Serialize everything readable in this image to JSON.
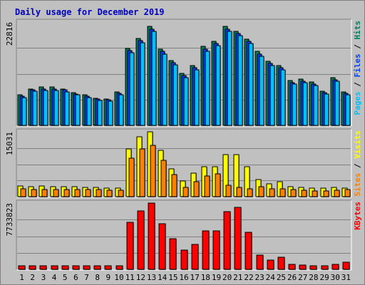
{
  "chart_data": {
    "type": "bar",
    "title": "Daily usage for December 2019",
    "colors": {
      "background": "#c0c0c0",
      "grid": "#808080",
      "hits": "#00805c",
      "files": "#0040ff",
      "pages": "#00c0ff",
      "visits": "#ffff00",
      "sites": "#ff8000",
      "kbytes": "#ff0000",
      "weekend_day_label": "#00805c",
      "weekday_day_label": "#000000",
      "title": "#0000c0"
    },
    "days": [
      {
        "label": "1",
        "weekend": true
      },
      {
        "label": "2",
        "weekend": false
      },
      {
        "label": "3",
        "weekend": false
      },
      {
        "label": "4",
        "weekend": false
      },
      {
        "label": "5",
        "weekend": false
      },
      {
        "label": "6",
        "weekend": false
      },
      {
        "label": "7",
        "weekend": true
      },
      {
        "label": "8",
        "weekend": true
      },
      {
        "label": "9",
        "weekend": false
      },
      {
        "label": "10",
        "weekend": false
      },
      {
        "label": "11",
        "weekend": false
      },
      {
        "label": "12",
        "weekend": false
      },
      {
        "label": "13",
        "weekend": false
      },
      {
        "label": "14",
        "weekend": true
      },
      {
        "label": "15",
        "weekend": true
      },
      {
        "label": "16",
        "weekend": false
      },
      {
        "label": "17",
        "weekend": false
      },
      {
        "label": "18",
        "weekend": false
      },
      {
        "label": "19",
        "weekend": false
      },
      {
        "label": "20",
        "weekend": false
      },
      {
        "label": "21",
        "weekend": true
      },
      {
        "label": "22",
        "weekend": true
      },
      {
        "label": "23",
        "weekend": false
      },
      {
        "label": "24",
        "weekend": false
      },
      {
        "label": "25",
        "weekend": false
      },
      {
        "label": "26",
        "weekend": false
      },
      {
        "label": "27",
        "weekend": false
      },
      {
        "label": "28",
        "weekend": true
      },
      {
        "label": "29",
        "weekend": true
      },
      {
        "label": "30",
        "weekend": false
      },
      {
        "label": "31",
        "weekend": false
      }
    ],
    "panels": [
      {
        "axis_max_label": "22816",
        "ylim": [
          0,
          22816
        ],
        "legend": [
          {
            "text": "Pages",
            "color": "#00c0ff"
          },
          {
            "text": " / ",
            "color": "#000000"
          },
          {
            "text": "Files",
            "color": "#0040ff"
          },
          {
            "text": " / ",
            "color": "#000000"
          },
          {
            "text": "Hits",
            "color": "#00805c"
          }
        ],
        "series": [
          {
            "name": "Hits",
            "color": "#00805c",
            "values": [
              6800,
              8100,
              8500,
              8500,
              8100,
              7300,
              6800,
              6000,
              5800,
              7400,
              17000,
              19200,
              21800,
              16800,
              14300,
              11500,
              13200,
              17400,
              18500,
              21800,
              20800,
              19100,
              16300,
              14100,
              13200,
              9900,
              10200,
              9600,
              7600,
              10500,
              7400
            ]
          },
          {
            "name": "Files",
            "color": "#0040ff",
            "values": [
              6400,
              7800,
              8000,
              8000,
              7800,
              7000,
              6500,
              5800,
              5600,
              7100,
              16500,
              18800,
              21300,
              16300,
              13900,
              11000,
              12700,
              16900,
              18100,
              21300,
              20300,
              18600,
              15800,
              13700,
              12800,
              9500,
              9800,
              9200,
              7300,
              10100,
              7100
            ]
          },
          {
            "name": "Pages",
            "color": "#00c0ff",
            "values": [
              6100,
              7500,
              7700,
              7700,
              7400,
              6700,
              6200,
              5500,
              5300,
              6700,
              16000,
              18300,
              20800,
              15800,
              13400,
              10500,
              12200,
              16400,
              17600,
              20800,
              19800,
              18100,
              15300,
              13200,
              12300,
              9100,
              9400,
              8800,
              6900,
              9700,
              6800
            ]
          }
        ]
      },
      {
        "axis_max_label": "15031",
        "ylim": [
          0,
          15031
        ],
        "legend": [
          {
            "text": "Sites",
            "color": "#ff8000"
          },
          {
            "text": " / ",
            "color": "#000000"
          },
          {
            "text": "Visits",
            "color": "#ffff00"
          }
        ],
        "series": [
          {
            "name": "Visits",
            "color": "#ffff00",
            "values": [
              2500,
              2300,
              2400,
              2300,
              2300,
              2300,
              2200,
              2200,
              1900,
              1900,
              11100,
              13800,
              15000,
              10700,
              6500,
              3600,
              5500,
              6900,
              7000,
              9800,
              9800,
              6900,
              3900,
              2900,
              3500,
              2300,
              2100,
              2000,
              2000,
              2100,
              2000
            ]
          },
          {
            "name": "Sites",
            "color": "#ff8000",
            "values": [
              1800,
              1700,
              1700,
              1700,
              1700,
              1700,
              1600,
              1600,
              1500,
              1500,
              8900,
              11000,
              11900,
              8500,
              5100,
              2200,
              3500,
              4800,
              5300,
              2700,
              2200,
              1800,
              2300,
              1800,
              1800,
              1700,
              1500,
              1400,
              1400,
              1500,
              1600
            ]
          }
        ]
      },
      {
        "axis_max_label": "7733823",
        "ylim": [
          0,
          7733823
        ],
        "legend": [
          {
            "text": "KBytes",
            "color": "#ff0000"
          }
        ],
        "series": [
          {
            "name": "KBytes",
            "color": "#ff0000",
            "values": [
              450000,
              450000,
              450000,
              450000,
              450000,
              450000,
              450000,
              450000,
              450000,
              450000,
              5450000,
              6800000,
              7733823,
              5300000,
              3550000,
              2250000,
              2900000,
              4500000,
              4500000,
              6700000,
              7200000,
              4300000,
              1650000,
              1100000,
              1400000,
              600000,
              500000,
              450000,
              450000,
              600000,
              800000
            ]
          }
        ]
      }
    ]
  }
}
